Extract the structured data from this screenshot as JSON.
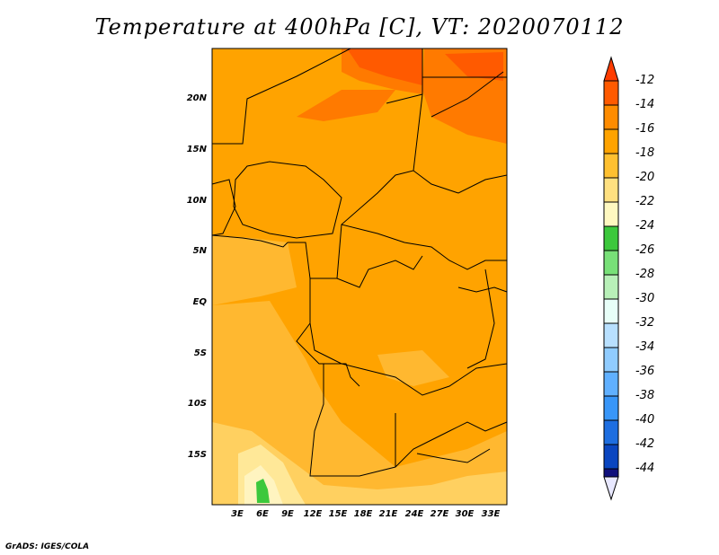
{
  "title": "Temperature at 400hPa [C], VT: 2020070112",
  "footer": "GrADS: IGES/COLA",
  "map": {
    "lat_labels": [
      "20N",
      "15N",
      "10N",
      "5N",
      "EQ",
      "5S",
      "10S",
      "15S"
    ],
    "lon_labels": [
      "3E",
      "6E",
      "9E",
      "12E",
      "15E",
      "18E",
      "21E",
      "24E",
      "27E",
      "30E",
      "33E"
    ],
    "region": "Central Africa",
    "field": "Temperature at 400hPa",
    "units": "C"
  },
  "colorbar": {
    "levels": [
      "-12",
      "-14",
      "-16",
      "-18",
      "-20",
      "-22",
      "-24",
      "-26",
      "-28",
      "-30",
      "-32",
      "-34",
      "-36",
      "-38",
      "-40",
      "-42",
      "-44"
    ],
    "colors": [
      "#ff5a00",
      "#ff8c00",
      "#ffa300",
      "#ffc030",
      "#ffe080",
      "#fff8c0",
      "#3cc83c",
      "#78e078",
      "#b8f0b8",
      "#e8fff8",
      "#b8e0ff",
      "#90ccff",
      "#60b0ff",
      "#3896f8",
      "#1e6ee0",
      "#0a46c0",
      "#10107c",
      "#e8e8ff"
    ]
  }
}
